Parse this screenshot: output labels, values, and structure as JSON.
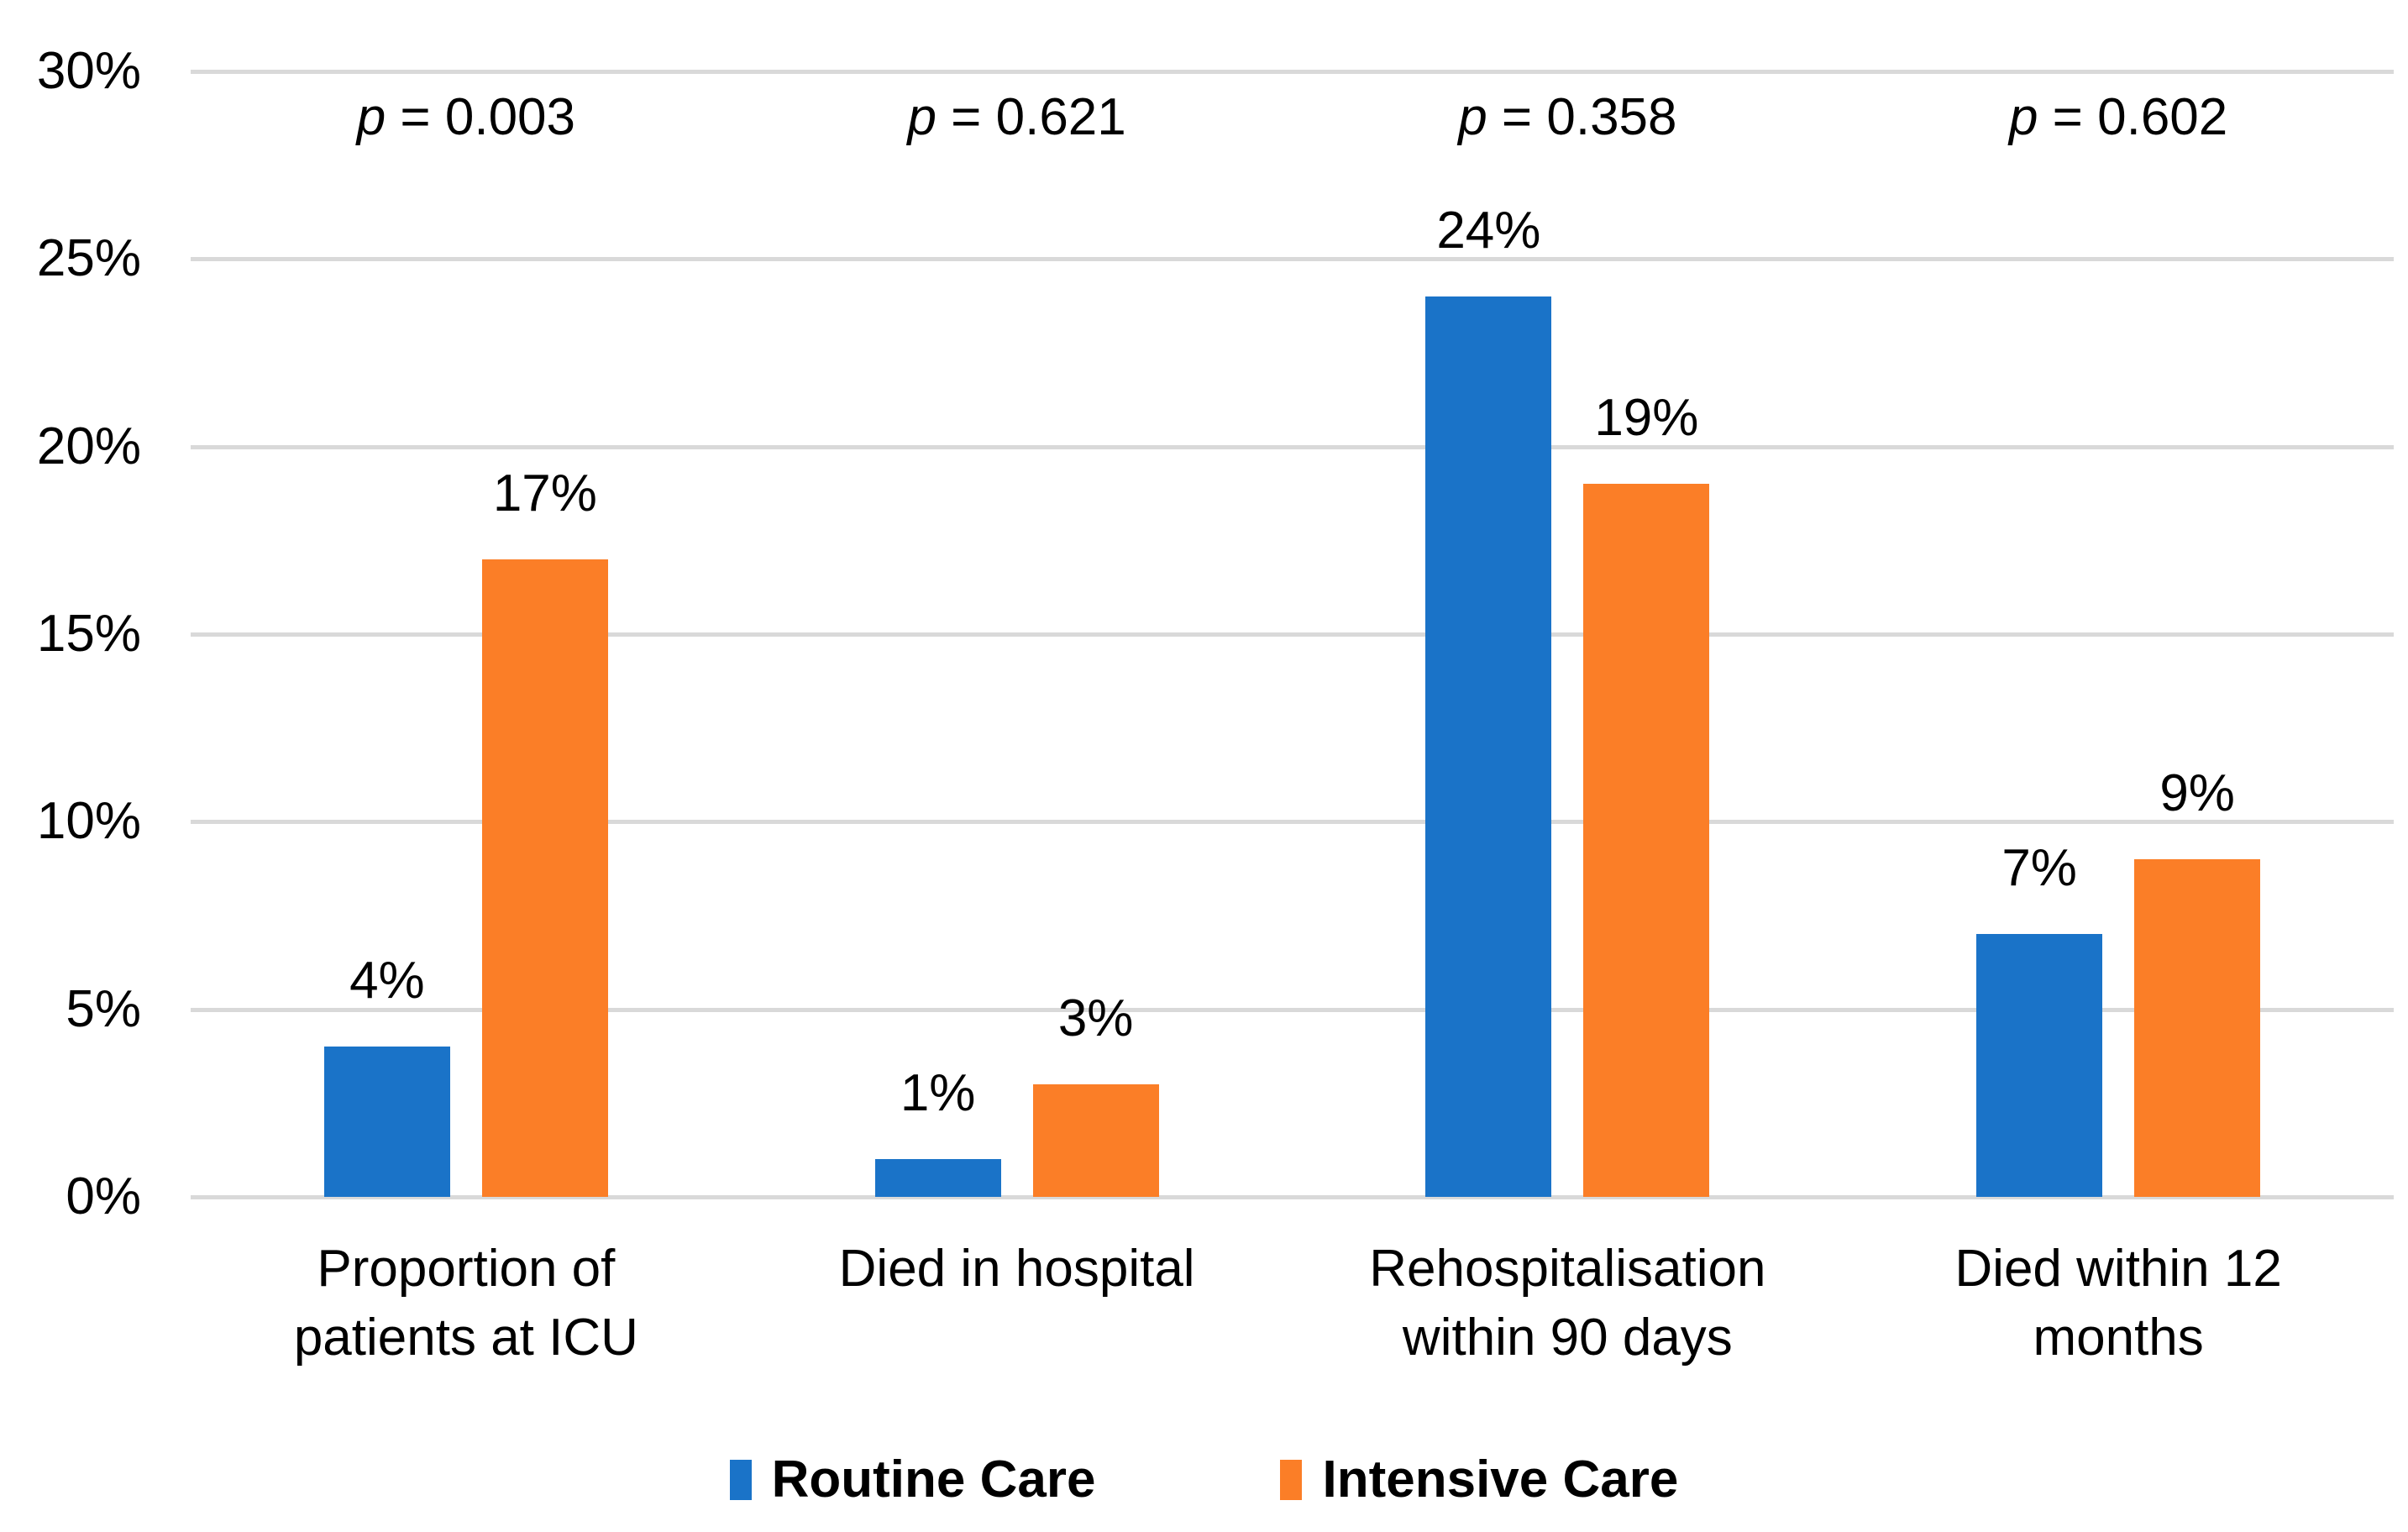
{
  "chart_data": {
    "type": "bar",
    "categories": [
      "Proportion of patients at ICU",
      "Died in hospital",
      "Rehospitalisation within 90 days",
      "Died within 12 months"
    ],
    "series": [
      {
        "name": "Routine Care",
        "color": "#1A73C8",
        "values": [
          4,
          1,
          24,
          7
        ]
      },
      {
        "name": "Intensive Care",
        "color": "#FB7E27",
        "values": [
          17,
          3,
          19,
          9
        ]
      }
    ],
    "p_symbol": "p",
    "p_separator": " = ",
    "p_values": [
      "0.003",
      "0.621",
      "0.358",
      "0.602"
    ],
    "data_label_suffix": "%",
    "y_axis": {
      "min": 0,
      "max": 30,
      "step": 5,
      "tick_suffix": "%",
      "tick_labels": [
        "30%",
        "25%",
        "20%",
        "15%",
        "10%",
        "5%",
        "0%"
      ]
    },
    "grid": true,
    "gridline_color": "#D9D9D9",
    "background_color": "#FFFFFF",
    "text_color": "#000000",
    "title": "",
    "xlabel": "",
    "ylabel": "",
    "legend_position": "bottom"
  }
}
